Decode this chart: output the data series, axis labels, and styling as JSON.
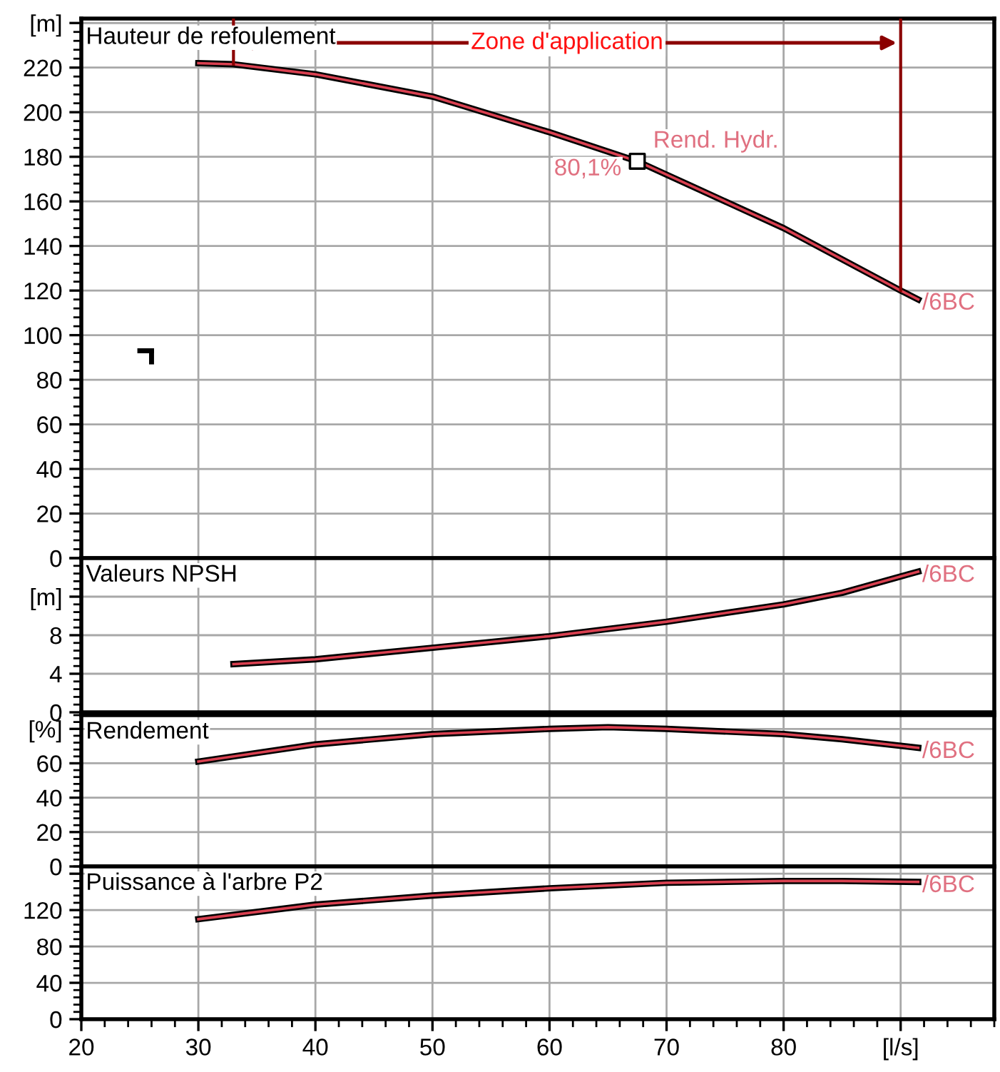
{
  "chart_data": [
    {
      "type": "line",
      "title": "Hauteur de refoulement",
      "xlim": [
        20,
        98
      ],
      "xticks": [
        20,
        30,
        40,
        50,
        60,
        70,
        80,
        90
      ],
      "ylim": [
        0,
        242
      ],
      "yticks": [
        0,
        20,
        40,
        60,
        80,
        100,
        120,
        140,
        160,
        180,
        200,
        220,
        {
          "value": 240,
          "label": "[m]"
        }
      ],
      "tick_labels": "y",
      "grid": true,
      "legend": false,
      "series": [
        {
          "name": "/6BC",
          "color": "#d94050",
          "x": [
            30,
            33,
            40,
            50,
            60,
            67.5,
            70,
            80,
            90,
            91.5
          ],
          "values": [
            222,
            221.5,
            217,
            207,
            191,
            178,
            172,
            148,
            120,
            116
          ]
        },
        {
          "type": "scatter",
          "marker": "square",
          "color": "#000000",
          "x": [
            67.5
          ],
          "values": [
            178
          ]
        }
      ],
      "ref_lines": [
        {
          "axis": "x",
          "value": 33,
          "color": "#8b0000"
        },
        {
          "axis": "x",
          "value": 90,
          "color": "#8b0000"
        }
      ],
      "annotations": [
        {
          "text": "Rend. Hydr.",
          "x": 67.5,
          "y": 178
        },
        {
          "text": "80,1%",
          "x": 67.5,
          "y": 178
        },
        "Zone d'application"
      ]
    },
    {
      "type": "line",
      "title": "Valeurs NPSH",
      "xlim": [
        20,
        98
      ],
      "xticks": [
        20,
        30,
        40,
        50,
        60,
        70,
        80,
        90
      ],
      "ylim": [
        0,
        16
      ],
      "yticks": [
        0,
        4,
        8,
        {
          "value": 12,
          "label": "[m]"
        },
        {
          "value": 16,
          "label": null
        }
      ],
      "tick_labels": "y",
      "grid": true,
      "legend": false,
      "series": [
        {
          "name": "/6BC",
          "color": "#d94050",
          "x": [
            33,
            40,
            50,
            60,
            70,
            80,
            85,
            91.5
          ],
          "values": [
            5.0,
            5.5,
            6.7,
            7.9,
            9.4,
            11.2,
            12.4,
            14.6
          ]
        }
      ]
    },
    {
      "type": "line",
      "title": "Rendement",
      "xlim": [
        20,
        98
      ],
      "xticks": [
        20,
        30,
        40,
        50,
        60,
        70,
        80,
        90
      ],
      "ylim": [
        0,
        88
      ],
      "yticks": [
        0,
        20,
        40,
        60,
        {
          "value": 80,
          "label": "[%]"
        }
      ],
      "tick_labels": "y",
      "grid": true,
      "legend": false,
      "series": [
        {
          "name": "/6BC",
          "color": "#d94050",
          "x": [
            30,
            40,
            50,
            60,
            65,
            70,
            80,
            85,
            91.5
          ],
          "values": [
            61,
            71,
            77,
            80,
            81,
            80,
            77,
            74,
            69
          ]
        }
      ]
    },
    {
      "type": "line",
      "title": "Puissance à l'arbre P2",
      "xlim": [
        20,
        98
      ],
      "xticks": [
        20,
        30,
        40,
        50,
        60,
        70,
        80,
        {
          "value": 90,
          "label": "[l/s]"
        }
      ],
      "ylim": [
        0,
        168
      ],
      "yticks": [
        0,
        40,
        80,
        120,
        {
          "value": 160,
          "label": null
        }
      ],
      "grid": true,
      "legend": false,
      "series": [
        {
          "name": "/6BC",
          "color": "#d94050",
          "x": [
            30,
            40,
            50,
            60,
            70,
            80,
            85,
            91.5
          ],
          "values": [
            110,
            126,
            136,
            144,
            150,
            152,
            152,
            151
          ]
        }
      ]
    }
  ]
}
